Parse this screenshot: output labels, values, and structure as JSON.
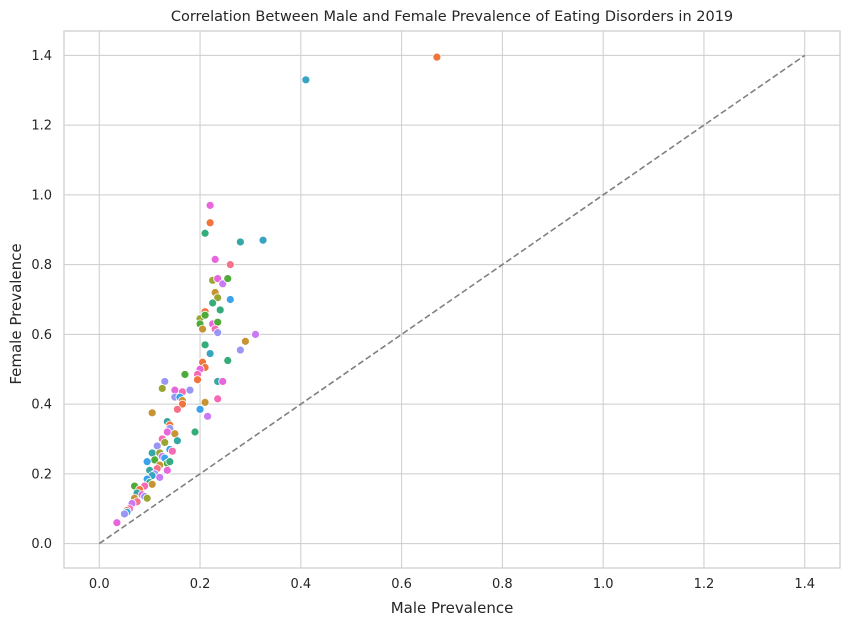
{
  "chart_data": {
    "type": "scatter",
    "title": "Correlation Between Male and Female Prevalence of Eating Disorders in 2019",
    "xlabel": "Male Prevalence",
    "ylabel": "Female Prevalence",
    "xlim": [
      -0.07,
      1.47
    ],
    "ylim": [
      -0.07,
      1.47
    ],
    "xticks": [
      0.0,
      0.2,
      0.4,
      0.6,
      0.8,
      1.0,
      1.2,
      1.4
    ],
    "yticks": [
      0.0,
      0.2,
      0.4,
      0.6,
      0.8,
      1.0,
      1.2,
      1.4
    ],
    "xtick_labels": [
      "0.0",
      "0.2",
      "0.4",
      "0.6",
      "0.8",
      "1.0",
      "1.2",
      "1.4"
    ],
    "ytick_labels": [
      "0.0",
      "0.2",
      "0.4",
      "0.6",
      "0.8",
      "1.0",
      "1.2",
      "1.4"
    ],
    "grid": true,
    "legend": "none",
    "reference_line": {
      "x": [
        0,
        1.4
      ],
      "y": [
        0,
        1.4
      ],
      "style": "dashed",
      "color": "#808080"
    },
    "colors": {
      "red": "#f77189",
      "orange": "#f0743c",
      "gold": "#c69432",
      "olive": "#9aa632",
      "green": "#4fab39",
      "teal_green": "#35ac7c",
      "teal": "#36a7a4",
      "cyan": "#37a4c2",
      "blue": "#3ba3ec",
      "lavender": "#9996f4",
      "purple": "#c77cf3",
      "magenta": "#e866dc",
      "pink": "#f569b5"
    },
    "points": [
      {
        "x": 0.67,
        "y": 1.395,
        "c": "orange"
      },
      {
        "x": 0.41,
        "y": 1.33,
        "c": "cyan"
      },
      {
        "x": 0.22,
        "y": 0.97,
        "c": "magenta"
      },
      {
        "x": 0.22,
        "y": 0.92,
        "c": "orange"
      },
      {
        "x": 0.21,
        "y": 0.89,
        "c": "teal_green"
      },
      {
        "x": 0.28,
        "y": 0.865,
        "c": "teal"
      },
      {
        "x": 0.325,
        "y": 0.87,
        "c": "cyan"
      },
      {
        "x": 0.23,
        "y": 0.815,
        "c": "magenta"
      },
      {
        "x": 0.26,
        "y": 0.8,
        "c": "red"
      },
      {
        "x": 0.225,
        "y": 0.755,
        "c": "olive"
      },
      {
        "x": 0.235,
        "y": 0.76,
        "c": "magenta"
      },
      {
        "x": 0.245,
        "y": 0.745,
        "c": "purple"
      },
      {
        "x": 0.255,
        "y": 0.76,
        "c": "green"
      },
      {
        "x": 0.23,
        "y": 0.72,
        "c": "gold"
      },
      {
        "x": 0.235,
        "y": 0.705,
        "c": "olive"
      },
      {
        "x": 0.225,
        "y": 0.69,
        "c": "teal_green"
      },
      {
        "x": 0.26,
        "y": 0.7,
        "c": "blue"
      },
      {
        "x": 0.21,
        "y": 0.665,
        "c": "orange"
      },
      {
        "x": 0.2,
        "y": 0.645,
        "c": "olive"
      },
      {
        "x": 0.21,
        "y": 0.655,
        "c": "green"
      },
      {
        "x": 0.24,
        "y": 0.67,
        "c": "teal_green"
      },
      {
        "x": 0.2,
        "y": 0.63,
        "c": "green"
      },
      {
        "x": 0.205,
        "y": 0.615,
        "c": "gold"
      },
      {
        "x": 0.225,
        "y": 0.63,
        "c": "magenta"
      },
      {
        "x": 0.235,
        "y": 0.635,
        "c": "green"
      },
      {
        "x": 0.23,
        "y": 0.615,
        "c": "pink"
      },
      {
        "x": 0.235,
        "y": 0.605,
        "c": "lavender"
      },
      {
        "x": 0.21,
        "y": 0.57,
        "c": "teal_green"
      },
      {
        "x": 0.31,
        "y": 0.6,
        "c": "purple"
      },
      {
        "x": 0.29,
        "y": 0.58,
        "c": "gold"
      },
      {
        "x": 0.22,
        "y": 0.545,
        "c": "cyan"
      },
      {
        "x": 0.255,
        "y": 0.525,
        "c": "teal_green"
      },
      {
        "x": 0.28,
        "y": 0.555,
        "c": "lavender"
      },
      {
        "x": 0.205,
        "y": 0.52,
        "c": "orange"
      },
      {
        "x": 0.21,
        "y": 0.505,
        "c": "orange"
      },
      {
        "x": 0.2,
        "y": 0.5,
        "c": "magenta"
      },
      {
        "x": 0.195,
        "y": 0.485,
        "c": "pink"
      },
      {
        "x": 0.17,
        "y": 0.485,
        "c": "green"
      },
      {
        "x": 0.195,
        "y": 0.47,
        "c": "orange"
      },
      {
        "x": 0.235,
        "y": 0.465,
        "c": "teal"
      },
      {
        "x": 0.245,
        "y": 0.465,
        "c": "magenta"
      },
      {
        "x": 0.13,
        "y": 0.465,
        "c": "lavender"
      },
      {
        "x": 0.125,
        "y": 0.445,
        "c": "olive"
      },
      {
        "x": 0.15,
        "y": 0.44,
        "c": "magenta"
      },
      {
        "x": 0.165,
        "y": 0.435,
        "c": "pink"
      },
      {
        "x": 0.18,
        "y": 0.44,
        "c": "lavender"
      },
      {
        "x": 0.15,
        "y": 0.42,
        "c": "lavender"
      },
      {
        "x": 0.16,
        "y": 0.42,
        "c": "blue"
      },
      {
        "x": 0.165,
        "y": 0.41,
        "c": "gold"
      },
      {
        "x": 0.165,
        "y": 0.4,
        "c": "orange"
      },
      {
        "x": 0.235,
        "y": 0.415,
        "c": "pink"
      },
      {
        "x": 0.21,
        "y": 0.405,
        "c": "gold"
      },
      {
        "x": 0.2,
        "y": 0.385,
        "c": "blue"
      },
      {
        "x": 0.155,
        "y": 0.385,
        "c": "red"
      },
      {
        "x": 0.105,
        "y": 0.375,
        "c": "gold"
      },
      {
        "x": 0.215,
        "y": 0.365,
        "c": "purple"
      },
      {
        "x": 0.135,
        "y": 0.35,
        "c": "teal"
      },
      {
        "x": 0.14,
        "y": 0.34,
        "c": "orange"
      },
      {
        "x": 0.14,
        "y": 0.33,
        "c": "lavender"
      },
      {
        "x": 0.135,
        "y": 0.32,
        "c": "magenta"
      },
      {
        "x": 0.15,
        "y": 0.315,
        "c": "gold"
      },
      {
        "x": 0.19,
        "y": 0.32,
        "c": "teal_green"
      },
      {
        "x": 0.125,
        "y": 0.3,
        "c": "pink"
      },
      {
        "x": 0.13,
        "y": 0.29,
        "c": "olive"
      },
      {
        "x": 0.155,
        "y": 0.295,
        "c": "teal"
      },
      {
        "x": 0.115,
        "y": 0.28,
        "c": "lavender"
      },
      {
        "x": 0.14,
        "y": 0.27,
        "c": "blue"
      },
      {
        "x": 0.145,
        "y": 0.265,
        "c": "pink"
      },
      {
        "x": 0.105,
        "y": 0.26,
        "c": "teal"
      },
      {
        "x": 0.12,
        "y": 0.26,
        "c": "olive"
      },
      {
        "x": 0.125,
        "y": 0.25,
        "c": "purple"
      },
      {
        "x": 0.13,
        "y": 0.245,
        "c": "blue"
      },
      {
        "x": 0.11,
        "y": 0.24,
        "c": "green"
      },
      {
        "x": 0.095,
        "y": 0.235,
        "c": "blue"
      },
      {
        "x": 0.135,
        "y": 0.23,
        "c": "green"
      },
      {
        "x": 0.14,
        "y": 0.235,
        "c": "teal_green"
      },
      {
        "x": 0.12,
        "y": 0.225,
        "c": "gold"
      },
      {
        "x": 0.115,
        "y": 0.215,
        "c": "red"
      },
      {
        "x": 0.1,
        "y": 0.21,
        "c": "teal"
      },
      {
        "x": 0.135,
        "y": 0.21,
        "c": "magenta"
      },
      {
        "x": 0.11,
        "y": 0.2,
        "c": "lavender"
      },
      {
        "x": 0.105,
        "y": 0.195,
        "c": "cyan"
      },
      {
        "x": 0.12,
        "y": 0.19,
        "c": "purple"
      },
      {
        "x": 0.095,
        "y": 0.185,
        "c": "blue"
      },
      {
        "x": 0.1,
        "y": 0.175,
        "c": "teal_green"
      },
      {
        "x": 0.105,
        "y": 0.17,
        "c": "gold"
      },
      {
        "x": 0.07,
        "y": 0.165,
        "c": "green"
      },
      {
        "x": 0.09,
        "y": 0.165,
        "c": "pink"
      },
      {
        "x": 0.08,
        "y": 0.155,
        "c": "orange"
      },
      {
        "x": 0.075,
        "y": 0.145,
        "c": "teal"
      },
      {
        "x": 0.085,
        "y": 0.14,
        "c": "magenta"
      },
      {
        "x": 0.09,
        "y": 0.135,
        "c": "lavender"
      },
      {
        "x": 0.07,
        "y": 0.13,
        "c": "gold"
      },
      {
        "x": 0.095,
        "y": 0.13,
        "c": "olive"
      },
      {
        "x": 0.075,
        "y": 0.12,
        "c": "red"
      },
      {
        "x": 0.065,
        "y": 0.115,
        "c": "purple"
      },
      {
        "x": 0.06,
        "y": 0.1,
        "c": "pink"
      },
      {
        "x": 0.055,
        "y": 0.095,
        "c": "orange"
      },
      {
        "x": 0.055,
        "y": 0.09,
        "c": "blue"
      },
      {
        "x": 0.05,
        "y": 0.085,
        "c": "lavender"
      },
      {
        "x": 0.035,
        "y": 0.06,
        "c": "magenta"
      }
    ]
  }
}
